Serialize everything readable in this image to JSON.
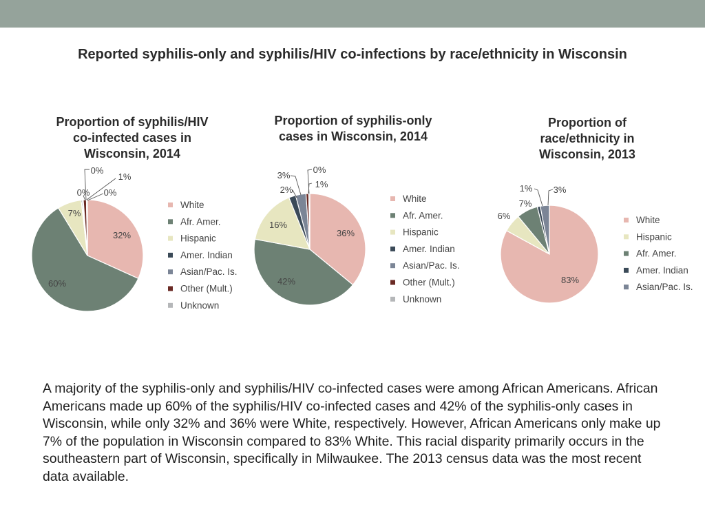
{
  "title": "Reported syphilis-only and syphilis/HIV co-infections by race/ethnicity in Wisconsin",
  "colors": {
    "top_bar": "#95a39b",
    "White": "#e7b7b0",
    "Afr. Amer.": "#6d8174",
    "Hispanic": "#e7e6c0",
    "Amer. Indian": "#3b4a58",
    "Asian/Pac. Is.": "#7b8596",
    "Other (Mult.)": "#6a2a24",
    "Unknown": "#b5b7b9"
  },
  "chart_data": [
    {
      "type": "pie",
      "title": "Proportion of syphilis/HIV co-infected cases in Wisconsin, 2014",
      "title_lines": [
        "Proportion of syphilis/HIV",
        "co-infected cases in",
        "Wisconsin, 2014"
      ],
      "categories": [
        "White",
        "Afr. Amer.",
        "Hispanic",
        "Amer. Indian",
        "Asian/Pac. Is.",
        "Other (Mult.)",
        "Unknown"
      ],
      "values": [
        32,
        60,
        7,
        0.3,
        0.3,
        0.9,
        0.3
      ],
      "labels": [
        "32%",
        "60%",
        "7%",
        "0%",
        "0%",
        "1%",
        "0%"
      ],
      "legend": [
        "White",
        "Afr. Amer.",
        "Hispanic",
        "Amer. Indian",
        "Asian/Pac. Is.",
        "Other (Mult.)",
        "Unknown"
      ]
    },
    {
      "type": "pie",
      "title": "Proportion of syphilis-only cases in Wisconsin, 2014",
      "title_lines": [
        "Proportion of syphilis-only",
        "cases in Wisconsin, 2014"
      ],
      "categories": [
        "White",
        "Afr. Amer.",
        "Hispanic",
        "Amer. Indian",
        "Asian/Pac. Is.",
        "Other (Mult.)",
        "Unknown"
      ],
      "values": [
        36,
        42,
        16,
        2,
        3,
        0.8,
        0.3
      ],
      "labels": [
        "36%",
        "42%",
        "16%",
        "2%",
        "3%",
        "1%",
        "0%"
      ],
      "legend": [
        "White",
        "Afr. Amer.",
        "Hispanic",
        "Amer. Indian",
        "Asian/Pac. Is.",
        "Other (Mult.)",
        "Unknown"
      ]
    },
    {
      "type": "pie",
      "title": "Proportion of race/ethnicity in Wisconsin, 2013",
      "title_lines": [
        "Proportion of",
        "race/ethnicity in",
        "Wisconsin, 2013"
      ],
      "categories": [
        "White",
        "Hispanic",
        "Afr. Amer.",
        "Amer. Indian",
        "Asian/Pac. Is."
      ],
      "values": [
        83,
        6,
        7,
        1,
        3
      ],
      "labels": [
        "83%",
        "6%",
        "7%",
        "1%",
        "3%"
      ],
      "legend": [
        "White",
        "Hispanic",
        "Afr. Amer.",
        "Amer. Indian",
        "Asian/Pac. Is."
      ]
    }
  ],
  "description": "A majority of the syphilis-only and syphilis/HIV co-infected cases were among African Americans. African Americans made up 60% of the syphilis/HIV co-infected cases and 42% of the syphilis-only cases in Wisconsin, while only 32% and 36% were White, respectively. However, African Americans only make up 7% of the population in Wisconsin compared to 83% White. This racial disparity primarily occurs in the southeastern part of Wisconsin, specifically in Milwaukee. The 2013 census data was the most recent data available."
}
